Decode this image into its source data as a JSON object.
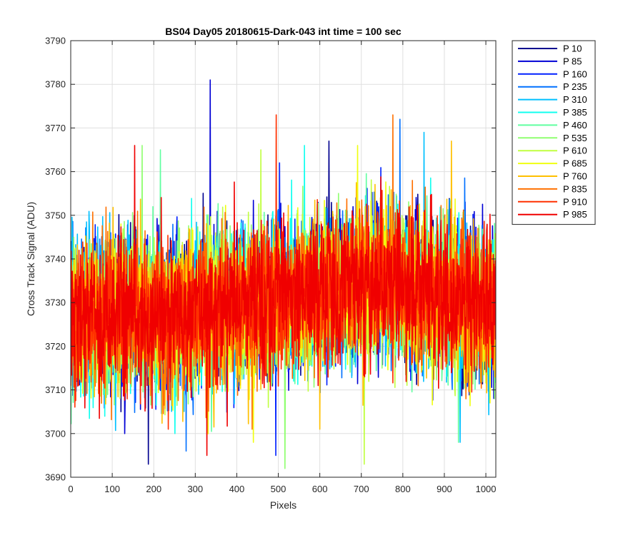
{
  "chart_data": {
    "type": "line",
    "title": "BS04 Day05 20180615-Dark-043 int time = 100 sec",
    "xlabel": "Pixels",
    "ylabel": "Cross Track Signal (ADU)",
    "xlim": [
      0,
      1024
    ],
    "ylim": [
      3690,
      3790
    ],
    "xticks": [
      0,
      100,
      200,
      300,
      400,
      500,
      600,
      700,
      800,
      900,
      1000
    ],
    "yticks": [
      3690,
      3700,
      3710,
      3720,
      3730,
      3740,
      3750,
      3760,
      3770,
      3780,
      3790
    ],
    "grid": true,
    "legend_position": "outside-top-right",
    "x_sample": [
      0,
      64,
      128,
      192,
      256,
      320,
      384,
      448,
      512,
      576,
      640,
      704,
      768,
      832,
      896,
      960,
      1023
    ],
    "series": [
      {
        "name": "P 10",
        "color": "#00008f",
        "mean": [
          3726,
          3727,
          3728,
          3727,
          3727,
          3728,
          3729,
          3730,
          3731,
          3732,
          3733,
          3734,
          3734,
          3733,
          3732,
          3730,
          3728
        ],
        "max": 3767,
        "min": 3693
      },
      {
        "name": "P 85",
        "color": "#0000d5",
        "mean": [
          3726,
          3727,
          3728,
          3727,
          3727,
          3728,
          3729,
          3730,
          3731,
          3732,
          3733,
          3734,
          3734,
          3733,
          3732,
          3730,
          3728
        ],
        "max": 3781,
        "min": 3700
      },
      {
        "name": "P 160",
        "color": "#0020ff",
        "mean": [
          3726,
          3727,
          3728,
          3727,
          3727,
          3728,
          3729,
          3730,
          3731,
          3732,
          3733,
          3734,
          3734,
          3733,
          3732,
          3730,
          3728
        ],
        "max": 3762,
        "min": 3695
      },
      {
        "name": "P 235",
        "color": "#0070ff",
        "mean": [
          3726,
          3727,
          3728,
          3727,
          3727,
          3728,
          3729,
          3730,
          3731,
          3732,
          3733,
          3734,
          3734,
          3733,
          3732,
          3730,
          3728
        ],
        "max": 3772,
        "min": 3696
      },
      {
        "name": "P 310",
        "color": "#00c0ff",
        "mean": [
          3726,
          3727,
          3728,
          3727,
          3727,
          3728,
          3729,
          3730,
          3731,
          3732,
          3733,
          3734,
          3734,
          3733,
          3732,
          3730,
          3728
        ],
        "max": 3769,
        "min": 3698
      },
      {
        "name": "P 385",
        "color": "#10ffef",
        "mean": [
          3726,
          3727,
          3728,
          3727,
          3727,
          3728,
          3729,
          3730,
          3731,
          3732,
          3733,
          3734,
          3734,
          3733,
          3732,
          3730,
          3728
        ],
        "max": 3766,
        "min": 3700
      },
      {
        "name": "P 460",
        "color": "#60ffa0",
        "mean": [
          3726,
          3727,
          3728,
          3727,
          3727,
          3728,
          3729,
          3730,
          3731,
          3732,
          3733,
          3734,
          3734,
          3733,
          3732,
          3730,
          3728
        ],
        "max": 3765,
        "min": 3698
      },
      {
        "name": "P 535",
        "color": "#90ff70",
        "mean": [
          3726,
          3727,
          3728,
          3727,
          3727,
          3728,
          3729,
          3730,
          3731,
          3732,
          3733,
          3734,
          3734,
          3733,
          3732,
          3730,
          3728
        ],
        "max": 3766,
        "min": 3692
      },
      {
        "name": "P 610",
        "color": "#c0ff40",
        "mean": [
          3726,
          3727,
          3728,
          3727,
          3727,
          3728,
          3729,
          3730,
          3731,
          3732,
          3733,
          3734,
          3734,
          3733,
          3732,
          3730,
          3728
        ],
        "max": 3765,
        "min": 3693
      },
      {
        "name": "P 685",
        "color": "#f0ff10",
        "mean": [
          3726,
          3727,
          3728,
          3727,
          3727,
          3728,
          3729,
          3730,
          3731,
          3732,
          3733,
          3734,
          3734,
          3733,
          3732,
          3730,
          3728
        ],
        "max": 3766,
        "min": 3698
      },
      {
        "name": "P 760",
        "color": "#ffc000",
        "mean": [
          3726,
          3727,
          3728,
          3727,
          3727,
          3728,
          3729,
          3730,
          3731,
          3732,
          3733,
          3734,
          3734,
          3733,
          3732,
          3730,
          3728
        ],
        "max": 3767,
        "min": 3701
      },
      {
        "name": "P 835",
        "color": "#ff7000",
        "mean": [
          3726,
          3727,
          3728,
          3727,
          3727,
          3728,
          3729,
          3730,
          3731,
          3732,
          3733,
          3734,
          3734,
          3733,
          3732,
          3730,
          3728
        ],
        "max": 3773,
        "min": 3701
      },
      {
        "name": "P 910",
        "color": "#ff3000",
        "mean": [
          3726,
          3727,
          3728,
          3727,
          3727,
          3728,
          3729,
          3730,
          3731,
          3732,
          3733,
          3734,
          3734,
          3733,
          3732,
          3730,
          3728
        ],
        "max": 3773,
        "min": 3701
      },
      {
        "name": "P 985",
        "color": "#f00000",
        "mean": [
          3726,
          3727,
          3728,
          3727,
          3727,
          3728,
          3729,
          3730,
          3731,
          3732,
          3733,
          3734,
          3734,
          3733,
          3732,
          3730,
          3728
        ],
        "max": 3766,
        "min": 3695
      }
    ]
  }
}
